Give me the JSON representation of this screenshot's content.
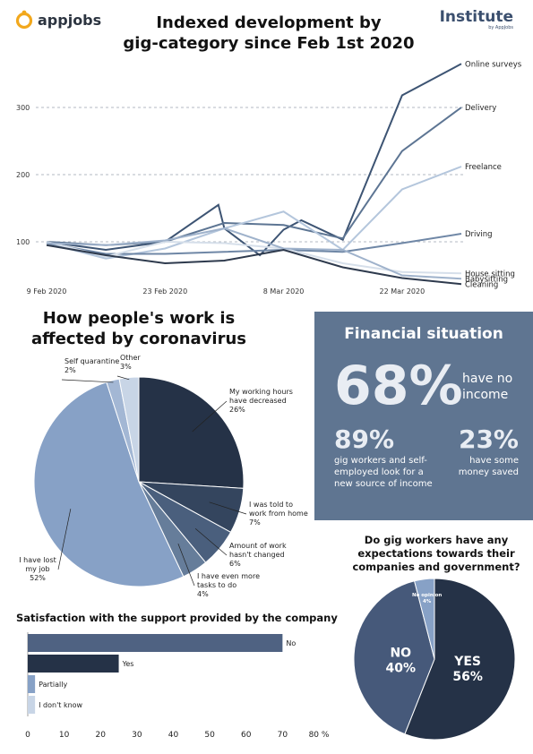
{
  "branding": {
    "left_logo": "appjobs",
    "right_logo": "Institute",
    "right_sub": "by AppJobs"
  },
  "line_title_1": "Indexed development by",
  "line_title_2": "gig-category since Feb 1st 2020",
  "pie1_title_1": "How people's work is",
  "pie1_title_2": "affected by coronavirus",
  "financial": {
    "title": "Financial situation",
    "big_value": "68%",
    "big_label": "have no income",
    "left_value": "89%",
    "left_label": "gig workers and self-employed look for a new source of income",
    "right_value": "23%",
    "right_label": "have some money saved"
  },
  "pie2_title": "Do gig workers have any expectations towards their companies and government?",
  "bar_title": "Satisfaction with the support provided by the company",
  "chart_data": [
    {
      "type": "line",
      "title": "Indexed development by gig-category since Feb 1st 2020",
      "x": [
        "2020-02-09",
        "2020-02-16",
        "2020-02-23",
        "2020-03-01",
        "2020-03-08",
        "2020-03-15",
        "2020-03-22",
        "2020-03-29"
      ],
      "xticks": [
        "9 Feb 2020",
        "23 Feb 2020",
        "8 Mar 2020",
        "22 Mar 2020"
      ],
      "xtick_index": [
        0,
        2,
        4,
        6
      ],
      "yticks": [
        100,
        200,
        300
      ],
      "ylim": [
        40,
        380
      ],
      "series": [
        {
          "name": "Online surveys",
          "color": "#3d5473",
          "values": [
            100,
            88,
            100,
            120,
            118,
            103,
            318,
            365
          ]
        },
        {
          "name": "Delivery",
          "color": "#5d7593",
          "values": [
            100,
            95,
            100,
            128,
            125,
            105,
            235,
            300
          ]
        },
        {
          "name": "Freelance",
          "color": "#b4c6dc",
          "values": [
            98,
            75,
            90,
            120,
            145,
            88,
            178,
            212
          ]
        },
        {
          "name": "Driving",
          "color": "#6f87a6",
          "values": [
            98,
            82,
            82,
            85,
            88,
            85,
            98,
            112
          ]
        },
        {
          "name": "House sitting",
          "color": "#d6dfea",
          "values": [
            100,
            78,
            100,
            98,
            90,
            68,
            55,
            53
          ]
        },
        {
          "name": "Babysitting",
          "color": "#9fb2cb",
          "values": [
            98,
            95,
            102,
            120,
            90,
            88,
            50,
            45
          ]
        },
        {
          "name": "Cleaning",
          "color": "#2e3a4d",
          "values": [
            95,
            80,
            68,
            72,
            88,
            62,
            46,
            37
          ]
        }
      ],
      "extra_peaks": [
        {
          "series": "Online surveys",
          "points": [
            [
              2.9,
              155
            ],
            [
              3.6,
              80
            ],
            [
              4.3,
              132
            ]
          ]
        }
      ]
    },
    {
      "type": "pie",
      "title": "How people's work is affected by coronavirus",
      "slices": [
        {
          "label": "My working hours have decreased",
          "value": 26,
          "color": "#253247"
        },
        {
          "label": "I was told to work from home",
          "value": 7,
          "color": "#34455e"
        },
        {
          "label": "Amount of work hasn't changed",
          "value": 6,
          "color": "#4a5f7d"
        },
        {
          "label": "I have even more tasks to do",
          "value": 4,
          "color": "#667d9a"
        },
        {
          "label": "I have lost my job",
          "value": 52,
          "color": "#87a1c6"
        },
        {
          "label": "Self quarantine",
          "value": 2,
          "color": "#a3b7d4"
        },
        {
          "label": "Other",
          "value": 3,
          "color": "#c8d5e6"
        }
      ],
      "label_lines": [
        [
          "My working hours",
          "have decreased",
          "26%"
        ],
        [
          "I was told to",
          "work from home",
          "7%"
        ],
        [
          "Amount of work",
          "hasn't changed",
          "6%"
        ],
        [
          "I have even more",
          "tasks to do",
          "4%"
        ],
        [
          "I have lost",
          "my job",
          "52%"
        ],
        [
          "Self quarantine",
          "2%"
        ],
        [
          "Other",
          "3%"
        ]
      ]
    },
    {
      "type": "pie",
      "title": "Do gig workers have any expectations towards their companies and government?",
      "slices": [
        {
          "label": "YES",
          "value": 56,
          "color": "#253247"
        },
        {
          "label": "NO",
          "value": 40,
          "color": "#46597a"
        },
        {
          "label": "No opinion",
          "value": 4,
          "color": "#87a1c6"
        }
      ]
    },
    {
      "type": "bar",
      "orientation": "horizontal",
      "title": "Satisfaction with the support provided by the company",
      "categories": [
        "No",
        "Yes",
        "Partially",
        "I don't know"
      ],
      "values": [
        70,
        25,
        2,
        2
      ],
      "colors": [
        "#4f6282",
        "#253247",
        "#87a1c6",
        "#c8d5e6"
      ],
      "xticks": [
        "0",
        "10",
        "20",
        "30",
        "40",
        "50",
        "60",
        "70",
        "80 %"
      ],
      "xlim": [
        0,
        80
      ]
    }
  ]
}
